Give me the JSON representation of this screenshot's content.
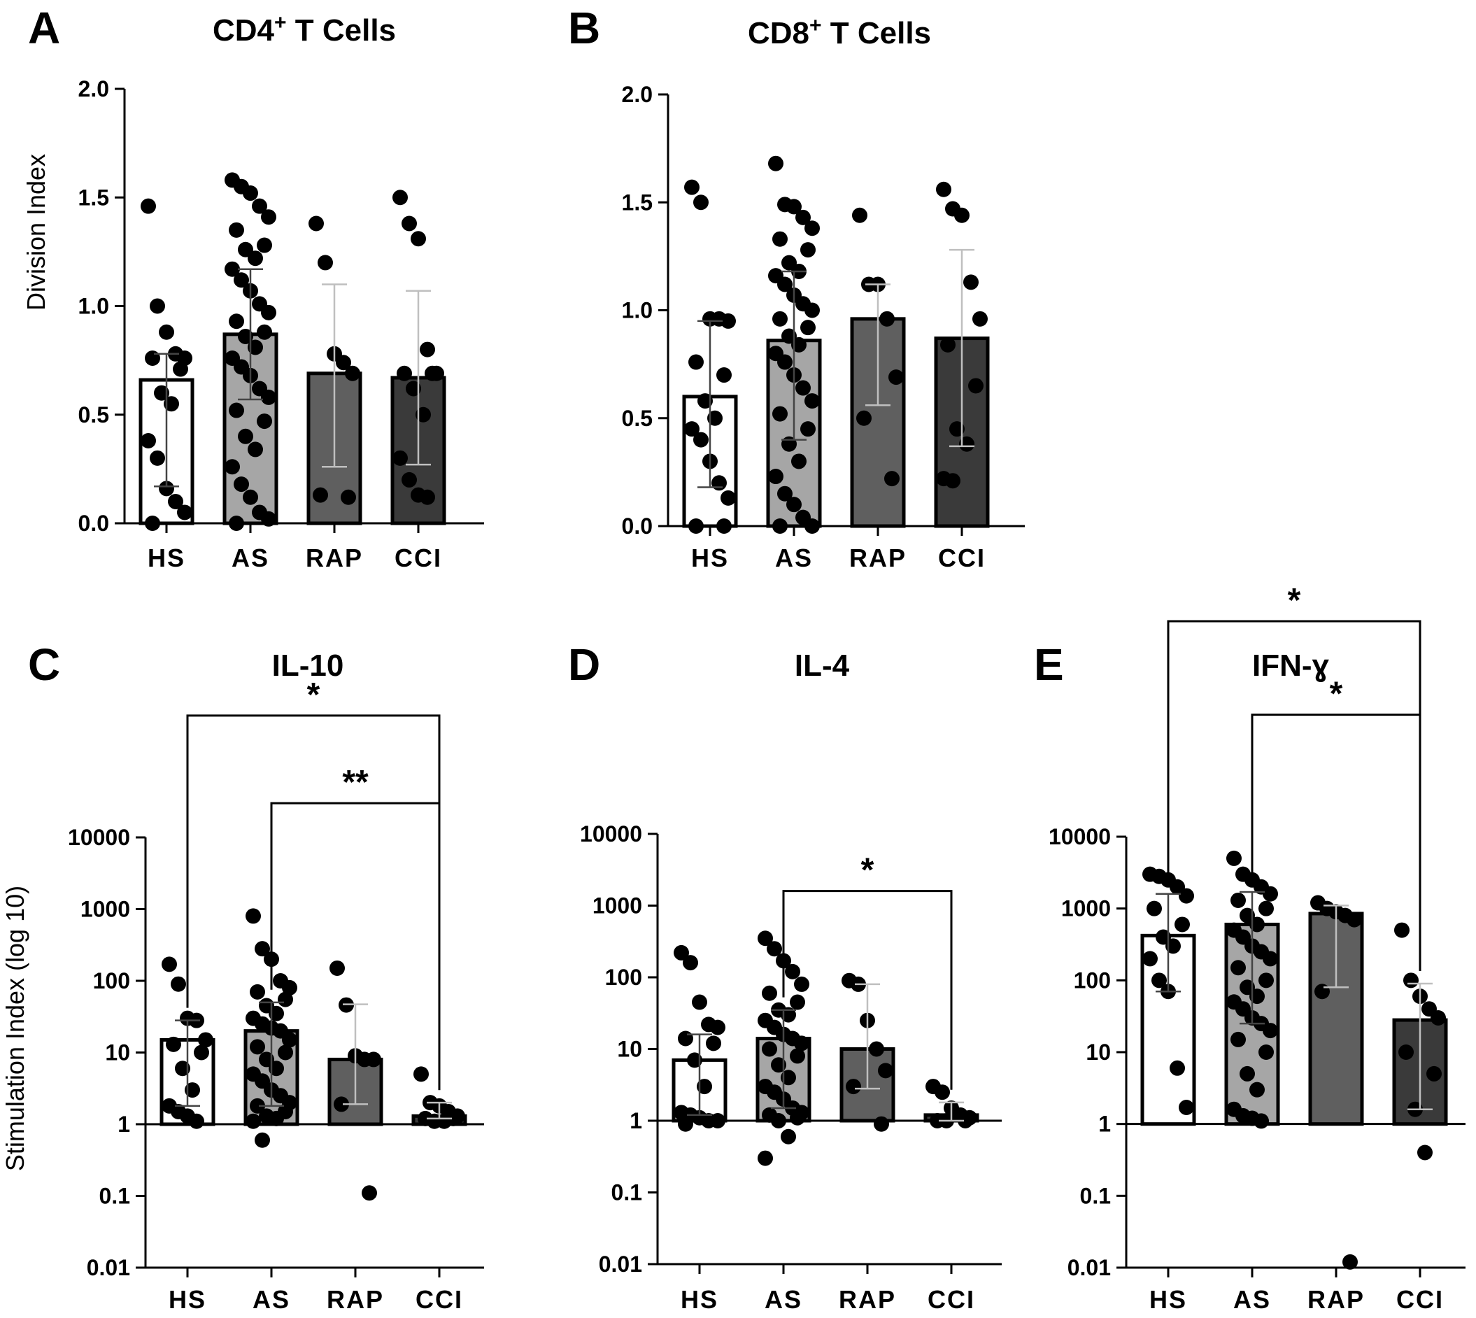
{
  "figure": {
    "panels": [
      {
        "letter": "A",
        "title_main": "CD4",
        "title_sup": "+",
        "title_rest": " T Cells"
      },
      {
        "letter": "B",
        "title_main": "CD8",
        "title_sup": "+",
        "title_rest": " T Cells"
      },
      {
        "letter": "C",
        "title_main": "IL-10",
        "title_sup": "",
        "title_rest": ""
      },
      {
        "letter": "D",
        "title_main": "IL-4",
        "title_sup": "",
        "title_rest": ""
      },
      {
        "letter": "E",
        "title_main": "IFN-ɣ",
        "title_sup": "",
        "title_rest": ""
      }
    ]
  },
  "colors": {
    "HS": "#ffffff",
    "AS": "#a6a6a6",
    "RAP": "#5f5f5f",
    "CCI": "#3a3a3a",
    "axis": "#000000",
    "dots": "#000000"
  },
  "chart_data": [
    {
      "id": "A",
      "type": "bar",
      "scale": "linear",
      "title": "CD4+ T Cells",
      "ylabel": "Division Index",
      "xlabel": "",
      "ylim": [
        0,
        2.0
      ],
      "yticks": [
        0.0,
        0.5,
        1.0,
        1.5,
        2.0
      ],
      "ytick_labels": [
        "0.0",
        "0.5",
        "1.0",
        "1.5",
        "2.0"
      ],
      "categories": [
        "HS",
        "AS",
        "RAP",
        "CCI"
      ],
      "values": [
        0.66,
        0.87,
        0.69,
        0.67
      ],
      "error_low": [
        0.17,
        0.57,
        0.26,
        0.27
      ],
      "error_high": [
        0.78,
        1.17,
        1.1,
        1.07
      ],
      "points": [
        [
          1.46,
          1.0,
          0.88,
          0.78,
          0.76,
          0.76,
          0.71,
          0.6,
          0.55,
          0.38,
          0.3,
          0.16,
          0.1,
          0.05,
          0.0
        ],
        [
          1.58,
          1.55,
          1.52,
          1.46,
          1.41,
          1.35,
          1.28,
          1.26,
          1.22,
          1.17,
          1.12,
          1.07,
          1.01,
          0.97,
          0.93,
          0.88,
          0.86,
          0.81,
          0.76,
          0.72,
          0.68,
          0.62,
          0.58,
          0.52,
          0.47,
          0.4,
          0.34,
          0.26,
          0.18,
          0.12,
          0.05,
          0.02,
          0.0
        ],
        [
          1.38,
          1.2,
          0.78,
          0.74,
          0.69,
          0.13,
          0.12
        ],
        [
          1.5,
          1.38,
          1.31,
          0.8,
          0.69,
          0.69,
          0.69,
          0.62,
          0.5,
          0.3,
          0.2,
          0.13,
          0.12
        ]
      ]
    },
    {
      "id": "B",
      "type": "bar",
      "scale": "linear",
      "title": "CD8+ T Cells",
      "ylabel": "",
      "xlabel": "",
      "ylim": [
        0,
        2.0
      ],
      "yticks": [
        0.0,
        0.5,
        1.0,
        1.5,
        2.0
      ],
      "ytick_labels": [
        "0.0",
        "0.5",
        "1.0",
        "1.5",
        "2.0"
      ],
      "categories": [
        "HS",
        "AS",
        "RAP",
        "CCI"
      ],
      "values": [
        0.6,
        0.86,
        0.96,
        0.87
      ],
      "error_low": [
        0.18,
        0.4,
        0.56,
        0.37
      ],
      "error_high": [
        0.95,
        1.18,
        1.12,
        1.28
      ],
      "points": [
        [
          1.57,
          1.5,
          0.96,
          0.96,
          0.95,
          0.76,
          0.7,
          0.58,
          0.5,
          0.45,
          0.4,
          0.3,
          0.2,
          0.13,
          0.0,
          0.0
        ],
        [
          1.68,
          1.49,
          1.48,
          1.43,
          1.38,
          1.33,
          1.28,
          1.22,
          1.18,
          1.16,
          1.12,
          1.07,
          1.03,
          1.0,
          0.96,
          0.92,
          0.88,
          0.84,
          0.8,
          0.76,
          0.7,
          0.64,
          0.58,
          0.52,
          0.45,
          0.38,
          0.3,
          0.23,
          0.15,
          0.1,
          0.04,
          0.0,
          0.0
        ],
        [
          1.44,
          1.12,
          1.12,
          0.96,
          0.69,
          0.5,
          0.22
        ],
        [
          1.56,
          1.47,
          1.44,
          1.13,
          0.96,
          0.84,
          0.65,
          0.45,
          0.38,
          0.22,
          0.21
        ]
      ]
    },
    {
      "id": "C",
      "type": "bar",
      "scale": "log",
      "title": "IL-10",
      "ylabel": "Stimulation Index (log 10)",
      "xlabel": "",
      "ylim": [
        0.01,
        10000
      ],
      "yticks": [
        0.01,
        0.1,
        1,
        10,
        100,
        1000,
        10000
      ],
      "ytick_labels": [
        "0.01",
        "0.1",
        "1",
        "10",
        "100",
        "1000",
        "10000"
      ],
      "baseline": 1,
      "categories": [
        "HS",
        "AS",
        "RAP",
        "CCI"
      ],
      "values": [
        15,
        20,
        8,
        1.3
      ],
      "error_low": [
        1.8,
        1.8,
        1.9,
        1.2
      ],
      "error_high": [
        28,
        50,
        47,
        2.0
      ],
      "points": [
        [
          170,
          90,
          30,
          28,
          15,
          13,
          10,
          6,
          3,
          1.8,
          1.5,
          1.3,
          1.1
        ],
        [
          800,
          280,
          200,
          100,
          80,
          70,
          55,
          45,
          35,
          30,
          25,
          22,
          20,
          15,
          12,
          10,
          8,
          6,
          5,
          4,
          3,
          2.5,
          2,
          1.8,
          1.5,
          1.3,
          1.2,
          1.1,
          0.6
        ],
        [
          150,
          46,
          9,
          8,
          8,
          1.9,
          0.11
        ],
        [
          5,
          2,
          1.8,
          1.5,
          1.3,
          1.2,
          1.2,
          1.1,
          1.1
        ]
      ],
      "comparisons": [
        {
          "from": 0,
          "to": 3,
          "y": 500000,
          "label": "*"
        },
        {
          "from": 1,
          "to": 3,
          "y": 30000,
          "label": "**"
        }
      ]
    },
    {
      "id": "D",
      "type": "bar",
      "scale": "log",
      "title": "IL-4",
      "ylabel": "",
      "xlabel": "",
      "ylim": [
        0.01,
        10000
      ],
      "yticks": [
        0.01,
        0.1,
        1,
        10,
        100,
        1000,
        10000
      ],
      "ytick_labels": [
        "0.01",
        "0.1",
        "1",
        "10",
        "100",
        "1000",
        "10000"
      ],
      "baseline": 1,
      "categories": [
        "HS",
        "AS",
        "RAP",
        "CCI"
      ],
      "values": [
        7,
        14,
        10,
        1.2
      ],
      "error_low": [
        1.2,
        1.5,
        2.8,
        1.0
      ],
      "error_high": [
        16,
        35,
        80,
        1.8
      ],
      "points": [
        [
          220,
          160,
          45,
          22,
          20,
          14,
          12,
          7,
          3,
          1.3,
          1.2,
          1.1,
          1.0,
          1.0,
          0.9
        ],
        [
          350,
          250,
          170,
          120,
          80,
          60,
          45,
          35,
          30,
          25,
          20,
          16,
          14,
          12,
          10,
          8,
          6,
          4,
          3,
          2.5,
          2,
          1.5,
          1.3,
          1.2,
          1.1,
          1.0,
          0.6,
          0.3
        ],
        [
          90,
          80,
          25,
          10,
          5,
          3,
          0.9
        ],
        [
          3,
          2.5,
          1.5,
          1.2,
          1.1,
          1.0,
          1.0,
          1.0
        ]
      ],
      "comparisons": [
        {
          "from": 1,
          "to": 3,
          "y": 1600,
          "label": "*"
        }
      ]
    },
    {
      "id": "E",
      "type": "bar",
      "scale": "log",
      "title": "IFN-ɣ",
      "ylabel": "",
      "xlabel": "",
      "ylim": [
        0.01,
        10000
      ],
      "yticks": [
        0.01,
        0.1,
        1,
        10,
        100,
        1000,
        10000
      ],
      "ytick_labels": [
        "0.01",
        "0.1",
        "1",
        "10",
        "100",
        "1000",
        "10000"
      ],
      "baseline": 1,
      "categories": [
        "HS",
        "AS",
        "RAP",
        "CCI"
      ],
      "values": [
        420,
        600,
        850,
        28
      ],
      "error_low": [
        70,
        25,
        80,
        1.6
      ],
      "error_high": [
        1600,
        1700,
        1100,
        90
      ],
      "points": [
        [
          3000,
          2800,
          2500,
          2000,
          1500,
          1000,
          600,
          400,
          300,
          200,
          100,
          70,
          6,
          1.7
        ],
        [
          5000,
          3000,
          2500,
          2000,
          1600,
          1300,
          1000,
          800,
          600,
          500,
          400,
          300,
          250,
          200,
          150,
          100,
          80,
          60,
          50,
          40,
          30,
          25,
          20,
          15,
          10,
          5,
          3,
          1.6,
          1.3,
          1.2,
          1.1
        ],
        [
          1200,
          1000,
          900,
          800,
          700,
          70,
          0.012
        ],
        [
          500,
          100,
          60,
          40,
          30,
          10,
          5,
          1.6,
          0.4
        ]
      ],
      "comparisons": [
        {
          "from": 0,
          "to": 3,
          "y": 10000000,
          "label": "*"
        },
        {
          "from": 1,
          "to": 3,
          "y": 500000,
          "label": "*"
        }
      ]
    }
  ]
}
